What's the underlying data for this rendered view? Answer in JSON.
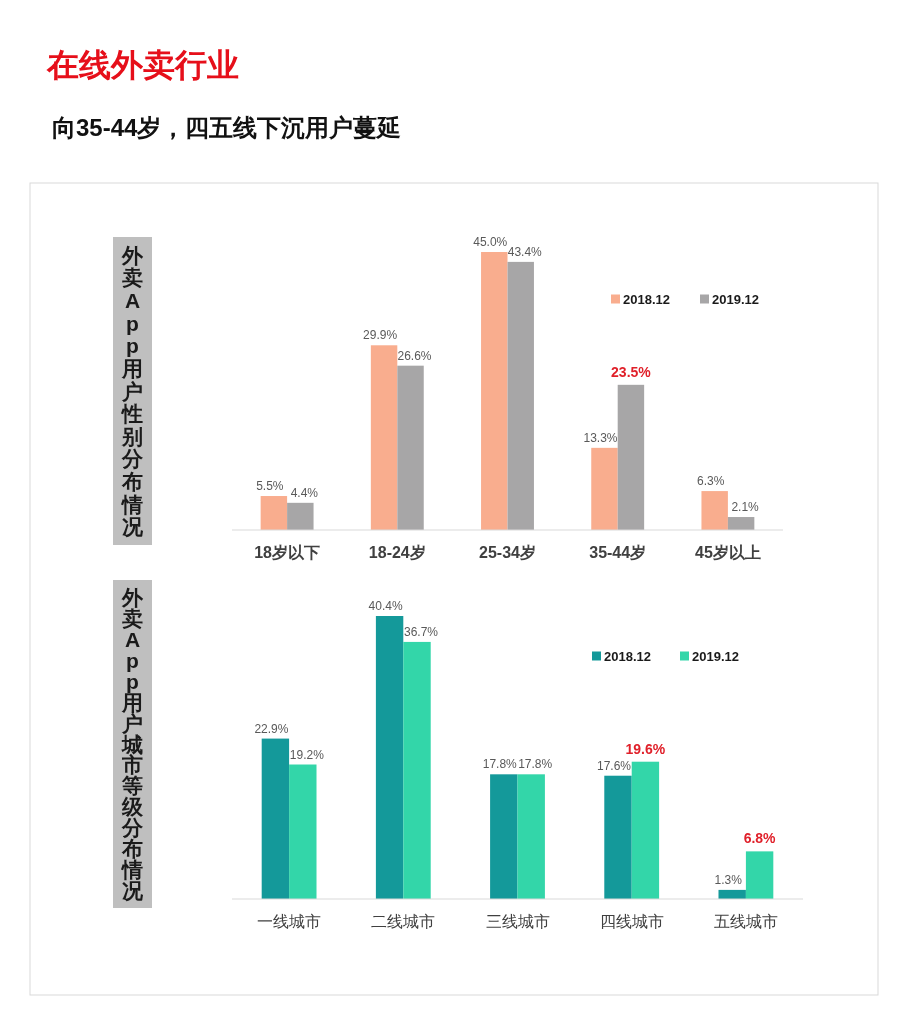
{
  "chart_data": [
    {
      "type": "bar",
      "title": "在线外卖行业",
      "subtitle": "向35-44岁，四五线下沉用户蔓延",
      "ylabel": "外卖App用户性别分布情况",
      "categories": [
        "18岁以下",
        "18-24岁",
        "25-34岁",
        "35-44岁",
        "45岁以上"
      ],
      "series": [
        {
          "name": "2018.12",
          "color": "#f9ad8e",
          "values": [
            5.5,
            29.9,
            45.0,
            13.3,
            6.3
          ],
          "value_labels": [
            "5.5%",
            "29.9%",
            "45.0%",
            "13.3%",
            "6.3%"
          ]
        },
        {
          "name": "2019.12",
          "color": "#a7a6a7",
          "values": [
            4.4,
            26.6,
            43.4,
            23.5,
            2.1
          ],
          "value_labels": [
            "4.4%",
            "26.6%",
            "43.4%",
            null,
            "2.1%"
          ]
        }
      ],
      "annotations": [
        {
          "text": "23.5%",
          "x": "35-44岁",
          "y": 23.5
        }
      ],
      "legend": "top right"
    },
    {
      "type": "bar",
      "ylabel": "外卖App用户城市等级分布情况",
      "categories": [
        "一线城市",
        "二线城市",
        "三线城市",
        "四线城市",
        "五线城市"
      ],
      "series": [
        {
          "name": "2018.12",
          "color": "#14999a",
          "values": [
            22.9,
            40.4,
            17.8,
            17.6,
            1.3
          ],
          "value_labels": [
            "22.9%",
            "40.4%",
            "17.8%",
            "17.6%",
            "1.3%"
          ]
        },
        {
          "name": "2019.12",
          "color": "#33d6a9",
          "values": [
            19.2,
            36.7,
            17.8,
            19.6,
            6.8
          ],
          "value_labels": [
            "19.2%",
            "36.7%",
            "17.8%",
            null,
            null
          ]
        }
      ],
      "annotations": [
        {
          "text": "19.6%",
          "x": "四线城市",
          "y": 19.6
        },
        {
          "text": "6.8%",
          "x": "五线城市",
          "y": 6.8
        }
      ],
      "legend": "top right"
    }
  ]
}
